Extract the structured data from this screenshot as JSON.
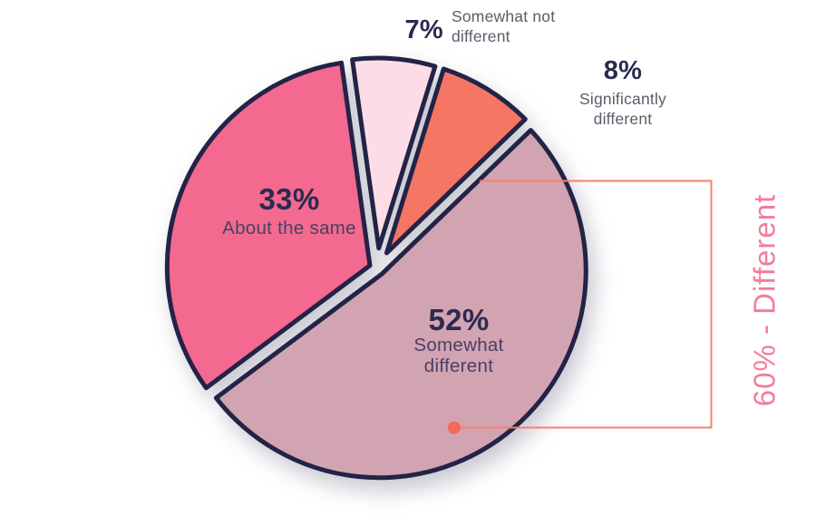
{
  "figure": {
    "background": "#FFFFFF",
    "title": ""
  },
  "chart_data": {
    "type": "pie",
    "title": "",
    "total": 100,
    "start_angle_deg": -8,
    "clockwise": true,
    "gridlines": false,
    "legend": "none",
    "stroke_color": "#232347",
    "stroke_width": 5,
    "slices": [
      {
        "label": "Somewhat not different",
        "value": 7,
        "pct_text": "7%",
        "color": "#FBDCE7",
        "label_placement": "outside-top",
        "name_lines": [
          "Somewhat not",
          "different"
        ]
      },
      {
        "label": "Significantly different",
        "value": 8,
        "pct_text": "8%",
        "color": "#F57663",
        "label_placement": "outside-right",
        "name_lines": [
          "Significantly",
          "different"
        ]
      },
      {
        "label": "Somewhat different",
        "value": 52,
        "pct_text": "52%",
        "color": "#D2A4B1",
        "label_placement": "inside",
        "name_lines": [
          "Somewhat",
          "different"
        ]
      },
      {
        "label": "About the same",
        "value": 33,
        "pct_text": "33%",
        "color": "#F4698F",
        "label_placement": "inside",
        "name_lines": [
          "About the same"
        ]
      }
    ],
    "annotation": {
      "text": "60% - Different",
      "value": 60,
      "includes": [
        "Significantly different",
        "Somewhat different"
      ],
      "text_color": "#F27D9B",
      "line_color": "#F4816C",
      "dot_color": "#F5685A"
    }
  }
}
